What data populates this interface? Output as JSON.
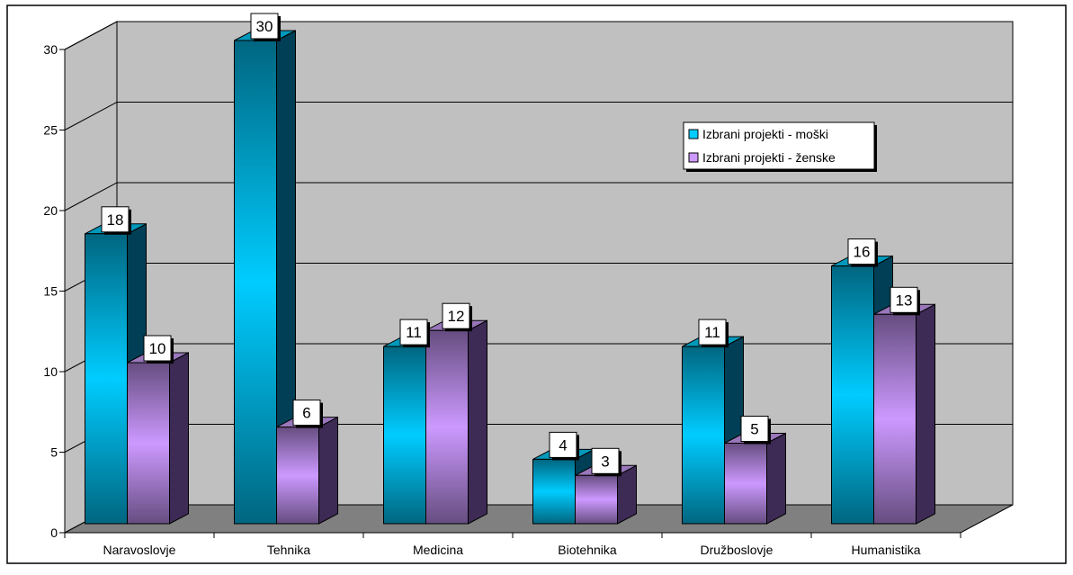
{
  "chart_data": {
    "type": "bar",
    "categories": [
      "Naravoslovje",
      "Tehnika",
      "Medicina",
      "Biotehnika",
      "Družboslovje",
      "Humanistika"
    ],
    "series": [
      {
        "name": "Izbrani projekti - moški",
        "values": [
          18,
          30,
          11,
          4,
          11,
          16
        ],
        "color": "#00ccff"
      },
      {
        "name": "Izbrani projekti - ženske",
        "values": [
          10,
          6,
          12,
          3,
          5,
          13
        ],
        "color": "#cc99ff"
      }
    ],
    "ylim": [
      0,
      30
    ],
    "yticks": [
      "0",
      "5",
      "10",
      "15",
      "20",
      "25",
      "30"
    ],
    "grid": true,
    "legend_position": "top-right",
    "data_labels": true,
    "style": "3d-clustered-column"
  },
  "colors": {
    "wall": "#c0c0c0",
    "floor": "#808080",
    "border": "#000000"
  }
}
